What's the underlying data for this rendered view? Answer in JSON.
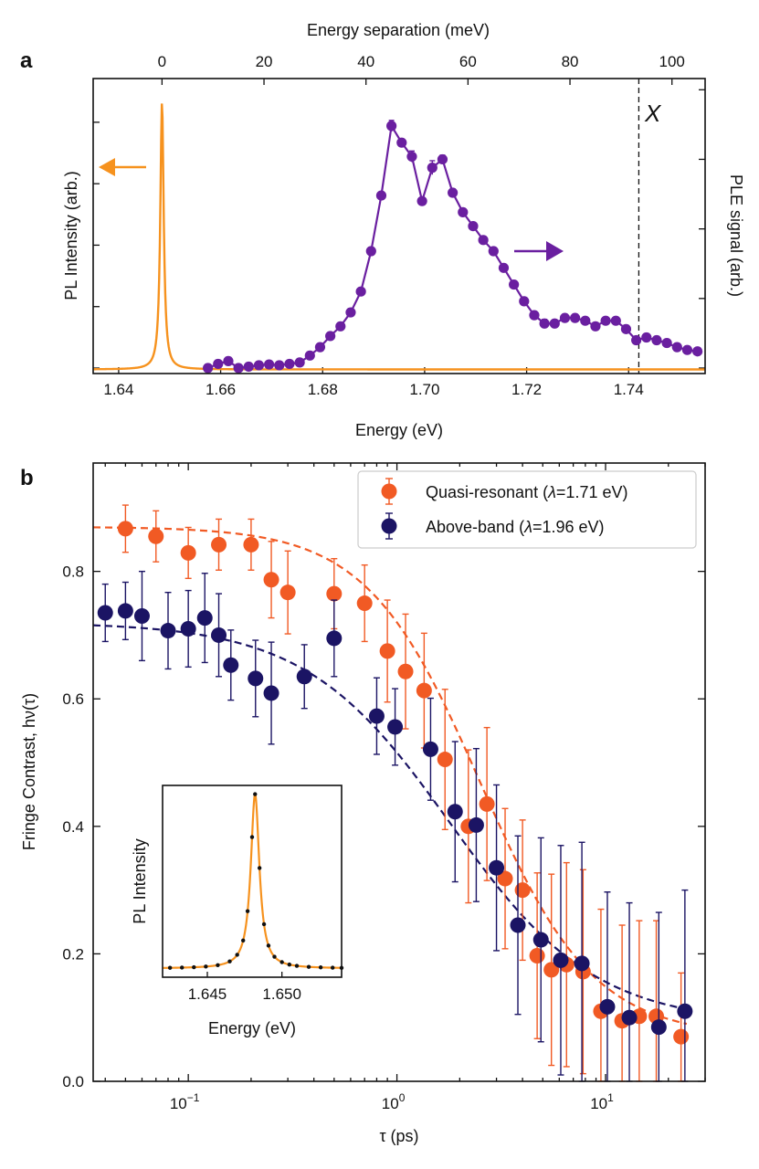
{
  "colors": {
    "pl": "#f6921e",
    "ple": "#6a1fa0",
    "quasi": "#f15a24",
    "above": "#1b1464",
    "vline": "#111111"
  },
  "chart_data": [
    {
      "id": "a",
      "panel_label": "a",
      "type": "line",
      "xlabel": "Energy (eV)",
      "x_top_label": "Energy separation (meV)",
      "ylabel_left": "PL Intensity (arb.)",
      "ylabel_right": "PLE signal (arb.)",
      "xlim": [
        1.635,
        1.755
      ],
      "x_ticks": [
        1.64,
        1.66,
        1.68,
        1.7,
        1.72,
        1.74
      ],
      "x_tick_labels": [
        "1.64",
        "1.66",
        "1.68",
        "1.70",
        "1.72",
        "1.74"
      ],
      "top_ticks": [
        0,
        20,
        40,
        60,
        80,
        100
      ],
      "top_tick_labels": [
        "0",
        "20",
        "40",
        "60",
        "80",
        "100"
      ],
      "top_zero_energy": 1.6485,
      "ylim_left": [
        -0.02,
        1.06
      ],
      "ylim_right": [
        0,
        1.06
      ],
      "marker_label": "X",
      "marker_x": 1.742,
      "pl_peak": {
        "center": 1.6485,
        "width": 0.0004,
        "amplitude": 1.0
      },
      "ple_series": {
        "name": "PLE",
        "x": [
          1.6575,
          1.6595,
          1.6615,
          1.6635,
          1.6655,
          1.6675,
          1.6695,
          1.6715,
          1.6735,
          1.6755,
          1.6775,
          1.6795,
          1.6815,
          1.6835,
          1.6855,
          1.6875,
          1.6895,
          1.6915,
          1.6935,
          1.6955,
          1.6975,
          1.6995,
          1.7015,
          1.7035,
          1.7055,
          1.7075,
          1.7095,
          1.7115,
          1.7135,
          1.7155,
          1.7175,
          1.7195,
          1.7215,
          1.7235,
          1.7255,
          1.7275,
          1.7295,
          1.7315,
          1.7335,
          1.7355,
          1.7375,
          1.7395,
          1.7415,
          1.7435,
          1.7455,
          1.7475,
          1.7495,
          1.7515,
          1.7535
        ],
        "y": [
          0.0,
          0.015,
          0.025,
          0.0,
          0.005,
          0.01,
          0.013,
          0.01,
          0.015,
          0.02,
          0.045,
          0.075,
          0.115,
          0.15,
          0.2,
          0.275,
          0.42,
          0.62,
          0.87,
          0.81,
          0.76,
          0.6,
          0.72,
          0.75,
          0.63,
          0.56,
          0.51,
          0.46,
          0.42,
          0.36,
          0.3,
          0.24,
          0.19,
          0.16,
          0.16,
          0.18,
          0.18,
          0.17,
          0.15,
          0.17,
          0.17,
          0.14,
          0.1,
          0.11,
          0.1,
          0.09,
          0.075,
          0.065,
          0.06
        ],
        "err": [
          0,
          0,
          0,
          0,
          0,
          0,
          0,
          0,
          0,
          0,
          0,
          0,
          0,
          0,
          0,
          0,
          0,
          0,
          0.02,
          0,
          0.02,
          0,
          0.025,
          0.015,
          0,
          0,
          0,
          0,
          0,
          0,
          0,
          0,
          0,
          0.015,
          0,
          0,
          0,
          0,
          0,
          0,
          0,
          0,
          0,
          0,
          0,
          0,
          0,
          0,
          0
        ]
      }
    },
    {
      "id": "b",
      "panel_label": "b",
      "type": "scatter",
      "xlabel": "τ (ps)",
      "ylabel": "Fringe Contrast, hν(τ)",
      "xscale": "log",
      "xlim": [
        0.035,
        30
      ],
      "ylim": [
        0.0,
        0.97
      ],
      "x_ticks": [
        0.1,
        1,
        10
      ],
      "y_ticks": [
        0.0,
        0.2,
        0.4,
        0.6,
        0.8
      ],
      "y_tick_labels": [
        "0.0",
        "0.2",
        "0.4",
        "0.6",
        "0.8"
      ],
      "legend": "top-right",
      "series": [
        {
          "name": "Quasi-resonant (λ=1.71 eV)",
          "legend_prefix": "Quasi-resonant (",
          "legend_sym": "λ",
          "legend_suffix": "=1.71 eV)",
          "x": [
            0.05,
            0.07,
            0.1,
            0.14,
            0.2,
            0.25,
            0.3,
            0.5,
            0.7,
            0.9,
            1.1,
            1.35,
            1.7,
            2.2,
            2.7,
            3.3,
            4.0,
            4.7,
            5.5,
            6.5,
            7.8,
            9.5,
            12.0,
            14.5,
            17.5,
            23.0
          ],
          "y": [
            0.867,
            0.855,
            0.829,
            0.842,
            0.842,
            0.787,
            0.767,
            0.765,
            0.75,
            0.675,
            0.643,
            0.613,
            0.505,
            0.4,
            0.435,
            0.318,
            0.3,
            0.197,
            0.175,
            0.183,
            0.172,
            0.11,
            0.095,
            0.102,
            0.102,
            0.07
          ],
          "err": [
            0.037,
            0.04,
            0.04,
            0.04,
            0.04,
            0.06,
            0.065,
            0.055,
            0.06,
            0.08,
            0.09,
            0.09,
            0.11,
            0.12,
            0.12,
            0.11,
            0.11,
            0.13,
            0.15,
            0.16,
            0.16,
            0.16,
            0.15,
            0.15,
            0.15,
            0.1
          ],
          "fit": {
            "a": 0.8,
            "tc": 2.5,
            "p": 1.6,
            "b": 0.07
          }
        },
        {
          "name": "Above-band (λ=1.96 eV)",
          "legend_prefix": "Above-band (",
          "legend_sym": "λ",
          "legend_suffix": "=1.96 eV)",
          "x": [
            0.04,
            0.05,
            0.06,
            0.08,
            0.1,
            0.12,
            0.14,
            0.16,
            0.21,
            0.25,
            0.36,
            0.5,
            0.8,
            0.98,
            1.45,
            1.9,
            2.4,
            3.0,
            3.8,
            4.9,
            6.1,
            7.7,
            10.2,
            13.0,
            18.0,
            24.0
          ],
          "y": [
            0.735,
            0.738,
            0.73,
            0.707,
            0.71,
            0.727,
            0.7,
            0.653,
            0.632,
            0.609,
            0.635,
            0.695,
            0.573,
            0.556,
            0.521,
            0.423,
            0.402,
            0.335,
            0.245,
            0.222,
            0.19,
            0.185,
            0.117,
            0.1,
            0.085,
            0.11
          ],
          "err": [
            0.045,
            0.045,
            0.07,
            0.06,
            0.06,
            0.07,
            0.065,
            0.055,
            0.06,
            0.08,
            0.05,
            0.06,
            0.06,
            0.06,
            0.08,
            0.11,
            0.12,
            0.13,
            0.14,
            0.16,
            0.18,
            0.19,
            0.18,
            0.18,
            0.18,
            0.19
          ],
          "fit": {
            "a": 0.63,
            "tc": 1.8,
            "p": 1.25,
            "b": 0.09
          }
        }
      ],
      "inset": {
        "xlabel": "Energy (eV)",
        "ylabel": "PL Intensity",
        "xlim": [
          1.642,
          1.654
        ],
        "x_ticks": [
          1.645,
          1.65
        ],
        "x_tick_labels": [
          "1.645",
          "1.650"
        ],
        "ylim": [
          -0.05,
          1.05
        ],
        "peak": {
          "center": 1.6482,
          "width": 0.00035,
          "amplitude": 1.0
        },
        "points_x": [
          1.6425,
          1.6433,
          1.6441,
          1.6449,
          1.6457,
          1.6465,
          1.647,
          1.6474,
          1.6477,
          1.648,
          1.6482,
          1.6485,
          1.6488,
          1.6491,
          1.6495,
          1.65,
          1.6505,
          1.651,
          1.6518,
          1.6526,
          1.6534,
          1.654
        ]
      }
    }
  ]
}
